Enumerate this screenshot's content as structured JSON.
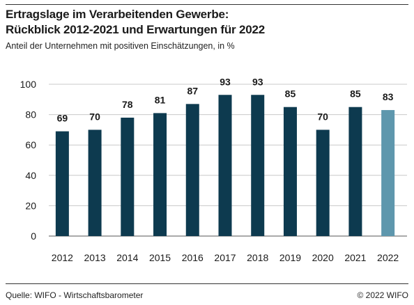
{
  "header": {
    "title_line1": "Ertragslage im Verarbeitenden Gewerbe:",
    "title_line2": "Rückblick 2012-2021 und Erwartungen für 2022",
    "subtitle": "Anteil der Unternehmen mit positiven Einschätzungen, in %"
  },
  "footer": {
    "source": "Quelle: WIFO - Wirtschaftsbarometer",
    "copyright": "© 2022 WIFO"
  },
  "colors": {
    "bar": "#0d3a4f",
    "bar_forecast": "#5e97ad"
  },
  "chart_data": {
    "type": "bar",
    "categories": [
      "2012",
      "2013",
      "2014",
      "2015",
      "2016",
      "2017",
      "2018",
      "2019",
      "2020",
      "2021",
      "2022"
    ],
    "values": [
      69,
      70,
      78,
      81,
      87,
      93,
      93,
      85,
      70,
      85,
      83
    ],
    "forecast_index": 10,
    "ylim": [
      0,
      100
    ],
    "yticks": [
      0,
      20,
      40,
      60,
      80,
      100
    ],
    "grid": true,
    "data_labels": true
  }
}
